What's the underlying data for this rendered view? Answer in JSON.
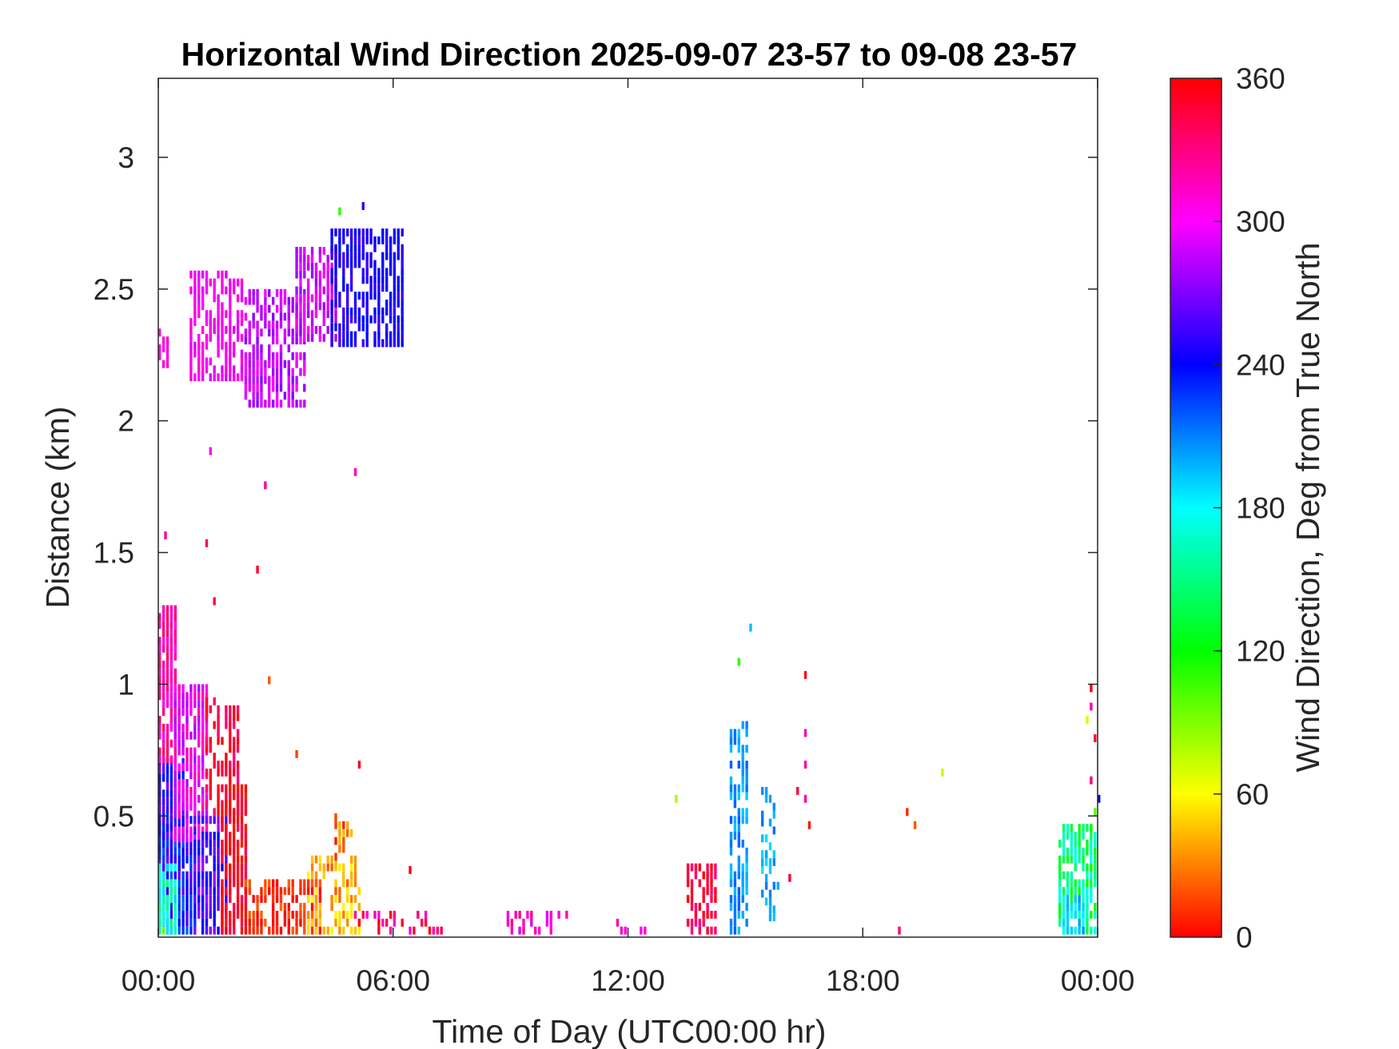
{
  "chart_data": {
    "type": "heatmap",
    "title": "Horizontal Wind Direction 2025-09-07 23-57 to 09-08 23-57",
    "xlabel": "Time of Day (UTC00:00 hr)",
    "ylabel": "Distance (km)",
    "xlim_hours": [
      0,
      24
    ],
    "ylim_km": [
      0.04,
      3.3
    ],
    "x_ticks": [
      {
        "value": 0,
        "label": "00:00"
      },
      {
        "value": 6,
        "label": "06:00"
      },
      {
        "value": 12,
        "label": "12:00"
      },
      {
        "value": 18,
        "label": "18:00"
      },
      {
        "value": 24,
        "label": "00:00"
      }
    ],
    "y_ticks": [
      {
        "value": 0.5,
        "label": "0.5"
      },
      {
        "value": 1,
        "label": "1"
      },
      {
        "value": 1.5,
        "label": "1.5"
      },
      {
        "value": 2,
        "label": "2"
      },
      {
        "value": 2.5,
        "label": "2.5"
      },
      {
        "value": 3,
        "label": "3"
      }
    ],
    "colorbar": {
      "label": "Wind Direction, Deg from True North",
      "range": [
        0,
        360
      ],
      "ticks": [
        {
          "value": 0,
          "label": "0"
        },
        {
          "value": 60,
          "label": "60"
        },
        {
          "value": 120,
          "label": "120"
        },
        {
          "value": 180,
          "label": "180"
        },
        {
          "value": 240,
          "label": "240"
        },
        {
          "value": 300,
          "label": "300"
        },
        {
          "value": 360,
          "label": "360"
        }
      ],
      "colormap": "hsv-like: 0 red, 60 yellow, 120 green, 180 cyan, 240 blue, 300 magenta, 360 red"
    },
    "grid": false,
    "cell_time_hours": 0.1,
    "cell_height_km": 0.03,
    "patches": [
      {
        "t": [
          0.0,
          0.25
        ],
        "h": [
          0.05,
          0.35
        ],
        "dir": 120,
        "spread": 30,
        "density": 0.85
      },
      {
        "t": [
          0.0,
          0.7
        ],
        "h": [
          0.3,
          0.7
        ],
        "dir": 250,
        "spread": 20,
        "density": 0.9
      },
      {
        "t": [
          0.1,
          1.0
        ],
        "h": [
          0.05,
          0.5
        ],
        "dir": 240,
        "spread": 25,
        "density": 0.9
      },
      {
        "t": [
          0.0,
          0.5
        ],
        "h": [
          0.05,
          0.3
        ],
        "dir": 170,
        "spread": 25,
        "density": 0.8
      },
      {
        "t": [
          0.0,
          0.5
        ],
        "h": [
          0.7,
          1.3
        ],
        "dir": 320,
        "spread": 20,
        "density": 0.85
      },
      {
        "t": [
          0.4,
          1.3
        ],
        "h": [
          0.4,
          1.0
        ],
        "dir": 300,
        "spread": 20,
        "density": 0.8
      },
      {
        "t": [
          0.9,
          1.8
        ],
        "h": [
          0.05,
          0.5
        ],
        "dir": 260,
        "spread": 20,
        "density": 0.85
      },
      {
        "t": [
          1.2,
          2.1
        ],
        "h": [
          0.5,
          0.95
        ],
        "dir": 345,
        "spread": 15,
        "density": 0.6
      },
      {
        "t": [
          1.6,
          2.3
        ],
        "h": [
          0.05,
          0.6
        ],
        "dir": 355,
        "spread": 12,
        "density": 0.8
      },
      {
        "t": [
          2.2,
          4.2
        ],
        "h": [
          0.05,
          0.25
        ],
        "dir": 10,
        "spread": 15,
        "density": 0.75
      },
      {
        "t": [
          3.8,
          5.2
        ],
        "h": [
          0.05,
          0.35
        ],
        "dir": 40,
        "spread": 20,
        "density": 0.55
      },
      {
        "t": [
          4.5,
          5.0
        ],
        "h": [
          0.3,
          0.5
        ],
        "dir": 25,
        "spread": 20,
        "density": 0.5
      },
      {
        "t": [
          5.0,
          7.3
        ],
        "h": [
          0.05,
          0.12
        ],
        "dir": 330,
        "spread": 30,
        "density": 0.35
      },
      {
        "t": [
          0.0,
          0.3
        ],
        "h": [
          2.2,
          2.33
        ],
        "dir": 305,
        "spread": 8,
        "density": 0.8
      },
      {
        "t": [
          0.8,
          2.2
        ],
        "h": [
          2.15,
          2.55
        ],
        "dir": 300,
        "spread": 10,
        "density": 0.75
      },
      {
        "t": [
          2.2,
          3.8
        ],
        "h": [
          2.05,
          2.5
        ],
        "dir": 285,
        "spread": 15,
        "density": 0.65
      },
      {
        "t": [
          3.5,
          4.6
        ],
        "h": [
          2.3,
          2.65
        ],
        "dir": 290,
        "spread": 15,
        "density": 0.75
      },
      {
        "t": [
          4.4,
          6.3
        ],
        "h": [
          2.28,
          2.72
        ],
        "dir": 245,
        "spread": 10,
        "density": 0.75
      },
      {
        "t": [
          8.8,
          10.6
        ],
        "h": [
          0.05,
          0.12
        ],
        "dir": 310,
        "spread": 20,
        "density": 0.4
      },
      {
        "t": [
          11.5,
          12.5
        ],
        "h": [
          0.05,
          0.09
        ],
        "dir": 320,
        "spread": 20,
        "density": 0.3
      },
      {
        "t": [
          13.5,
          14.3
        ],
        "h": [
          0.05,
          0.3
        ],
        "dir": 345,
        "spread": 15,
        "density": 0.65
      },
      {
        "t": [
          14.6,
          15.1
        ],
        "h": [
          0.05,
          0.85
        ],
        "dir": 205,
        "spread": 15,
        "density": 0.6
      },
      {
        "t": [
          15.4,
          15.8
        ],
        "h": [
          0.1,
          0.6
        ],
        "dir": 200,
        "spread": 15,
        "density": 0.45
      },
      {
        "t": [
          23.0,
          24.0
        ],
        "h": [
          0.05,
          0.45
        ],
        "dir": 150,
        "spread": 30,
        "density": 0.8
      },
      {
        "t": [
          23.1,
          23.7
        ],
        "h": [
          0.05,
          0.2
        ],
        "dir": 185,
        "spread": 20,
        "density": 0.7
      }
    ],
    "points": [
      [
        0.15,
        1.55,
        325
      ],
      [
        1.2,
        1.52,
        340
      ],
      [
        2.5,
        1.42,
        350
      ],
      [
        1.4,
        1.3,
        345
      ],
      [
        2.8,
        1.0,
        20
      ],
      [
        3.5,
        0.72,
        15
      ],
      [
        5.1,
        0.68,
        355
      ],
      [
        2.7,
        1.74,
        325
      ],
      [
        1.3,
        1.87,
        300
      ],
      [
        5.0,
        1.79,
        315
      ],
      [
        5.2,
        2.8,
        250
      ],
      [
        4.6,
        2.78,
        110
      ],
      [
        6.4,
        0.28,
        355
      ],
      [
        13.2,
        0.55,
        80
      ],
      [
        14.8,
        1.07,
        110
      ],
      [
        15.1,
        1.2,
        195
      ],
      [
        16.5,
        1.02,
        355
      ],
      [
        16.5,
        0.8,
        320
      ],
      [
        16.5,
        0.68,
        325
      ],
      [
        16.6,
        0.45,
        5
      ],
      [
        16.5,
        0.55,
        320
      ],
      [
        16.1,
        0.25,
        350
      ],
      [
        16.3,
        0.58,
        345
      ],
      [
        15.8,
        0.22,
        200
      ],
      [
        19.1,
        0.5,
        10
      ],
      [
        19.3,
        0.45,
        20
      ],
      [
        20.0,
        0.65,
        75
      ],
      [
        18.9,
        0.05,
        335
      ],
      [
        23.8,
        0.97,
        355
      ],
      [
        23.7,
        0.85,
        70
      ],
      [
        23.9,
        0.78,
        345
      ],
      [
        23.8,
        0.62,
        330
      ],
      [
        24.0,
        0.55,
        240
      ],
      [
        23.9,
        0.5,
        100
      ],
      [
        23.8,
        0.9,
        320
      ]
    ]
  }
}
